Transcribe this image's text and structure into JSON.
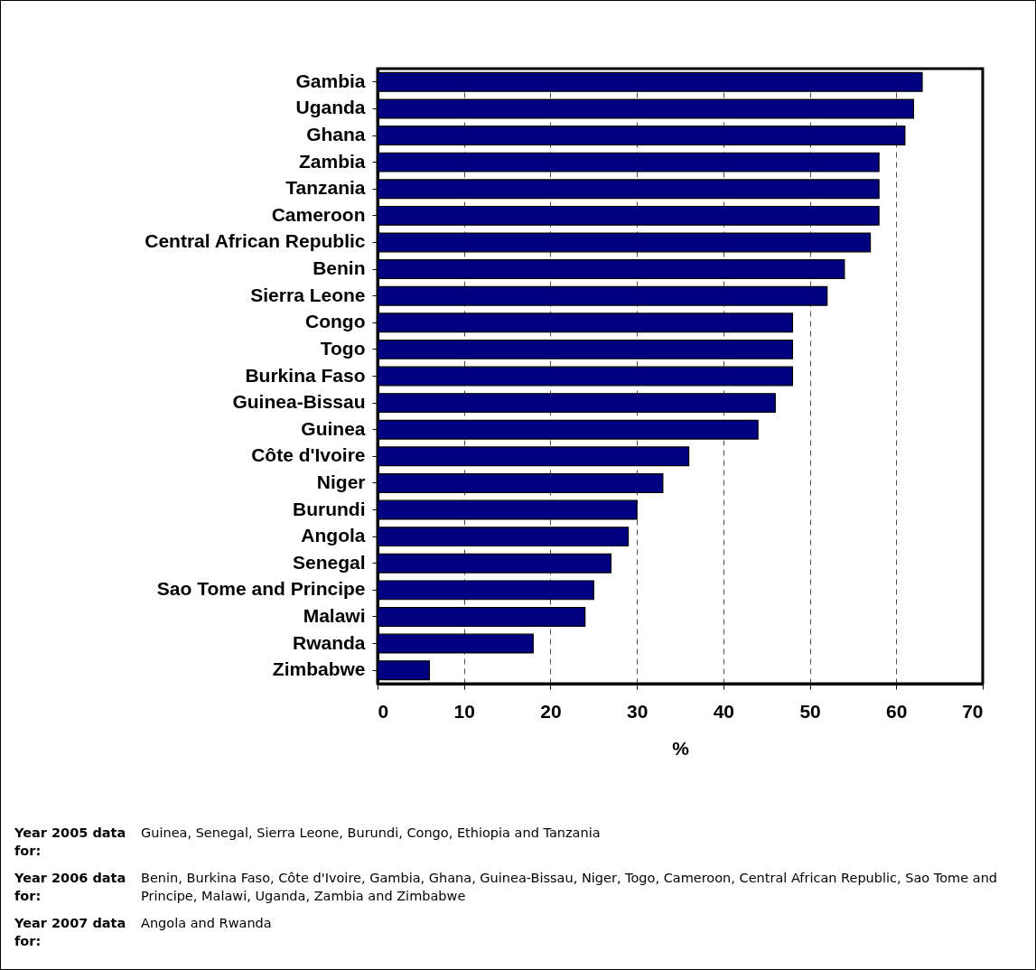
{
  "chart_data": {
    "type": "bar",
    "orientation": "horizontal",
    "categories": [
      "Gambia",
      "Uganda",
      "Ghana",
      "Zambia",
      "Tanzania",
      "Cameroon",
      "Central African Republic",
      "Benin",
      "Sierra Leone",
      "Congo",
      "Togo",
      "Burkina Faso",
      "Guinea-Bissau",
      "Guinea",
      "Côte d'Ivoire",
      "Niger",
      "Burundi",
      "Angola",
      "Senegal",
      "Sao Tome and Principe",
      "Malawi",
      "Rwanda",
      "Zimbabwe"
    ],
    "values": [
      63,
      62,
      61,
      58,
      58,
      58,
      57,
      54,
      52,
      48,
      48,
      48,
      46,
      44,
      36,
      33,
      30,
      29,
      27,
      25,
      24,
      18,
      6
    ],
    "color": "#000080",
    "xlabel": "%",
    "xlim": [
      0,
      70
    ],
    "xticks": [
      0,
      10,
      20,
      30,
      40,
      50,
      60,
      70
    ],
    "grid": "x",
    "annotations": [
      "Year 2005 data for: Guinea, Senegal, Sierra Leone, Burundi, Congo, Ethiopia and Tanzania",
      "Year 2006 data for: Benin, Burkina Faso, Côte d'Ivoire, Gambia, Ghana, Guinea-Bissau, Niger, Togo, Cameroon, Central African Republic, Sao Tome and Principe, Malawi, Uganda, Zambia and Zimbabwe",
      "Year 2007 data for: Angola and Rwanda"
    ]
  }
}
